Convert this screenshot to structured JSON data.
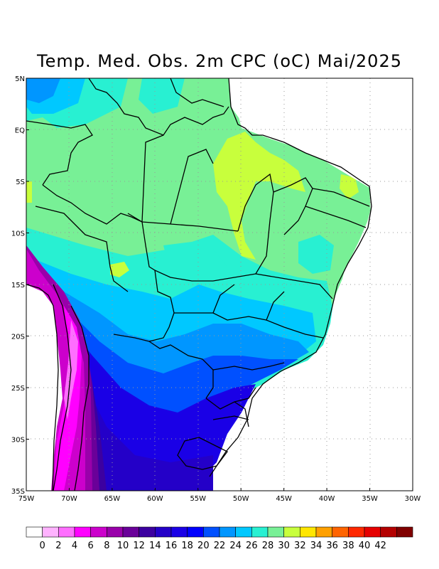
{
  "title": "Temp. Med. Obs. 2m CPC (oC) Mai/2025",
  "lat_labels": [
    "5N",
    "EQ",
    "5S",
    "10S",
    "15S",
    "20S",
    "25S",
    "30S",
    "35S"
  ],
  "lon_labels": [
    "75W",
    "70W",
    "65W",
    "60W",
    "55W",
    "50W",
    "45W",
    "40W",
    "35W",
    "30W"
  ],
  "colorbar": {
    "labels": [
      "0",
      "2",
      "4",
      "6",
      "8",
      "10",
      "12",
      "14",
      "16",
      "18",
      "20",
      "22",
      "24",
      "26",
      "28",
      "30",
      "32",
      "34",
      "36",
      "38",
      "40",
      "42"
    ],
    "colors": [
      "#ffffff",
      "#ffb3ff",
      "#ff6eff",
      "#ff00ff",
      "#cc00cc",
      "#9900aa",
      "#6a0099",
      "#3c00a0",
      "#2400c8",
      "#1a00e6",
      "#0000ff",
      "#0050ff",
      "#0096ff",
      "#00c8ff",
      "#28f0d2",
      "#78f096",
      "#c8ff3c",
      "#ffe600",
      "#ffa000",
      "#ff6400",
      "#ff2800",
      "#e60000",
      "#b40000",
      "#800000"
    ]
  },
  "regions": {
    "cold_purple": "#cc00cc",
    "magenta": "#ff00ff",
    "blue_violet": "#3c00a0",
    "blue": "#1a00e6",
    "mid_blue": "#0050ff",
    "light_blue": "#0096ff",
    "cyan": "#00c8ff",
    "aqua": "#28f0d2",
    "green": "#78f096",
    "yellow_green": "#c8ff3c"
  }
}
